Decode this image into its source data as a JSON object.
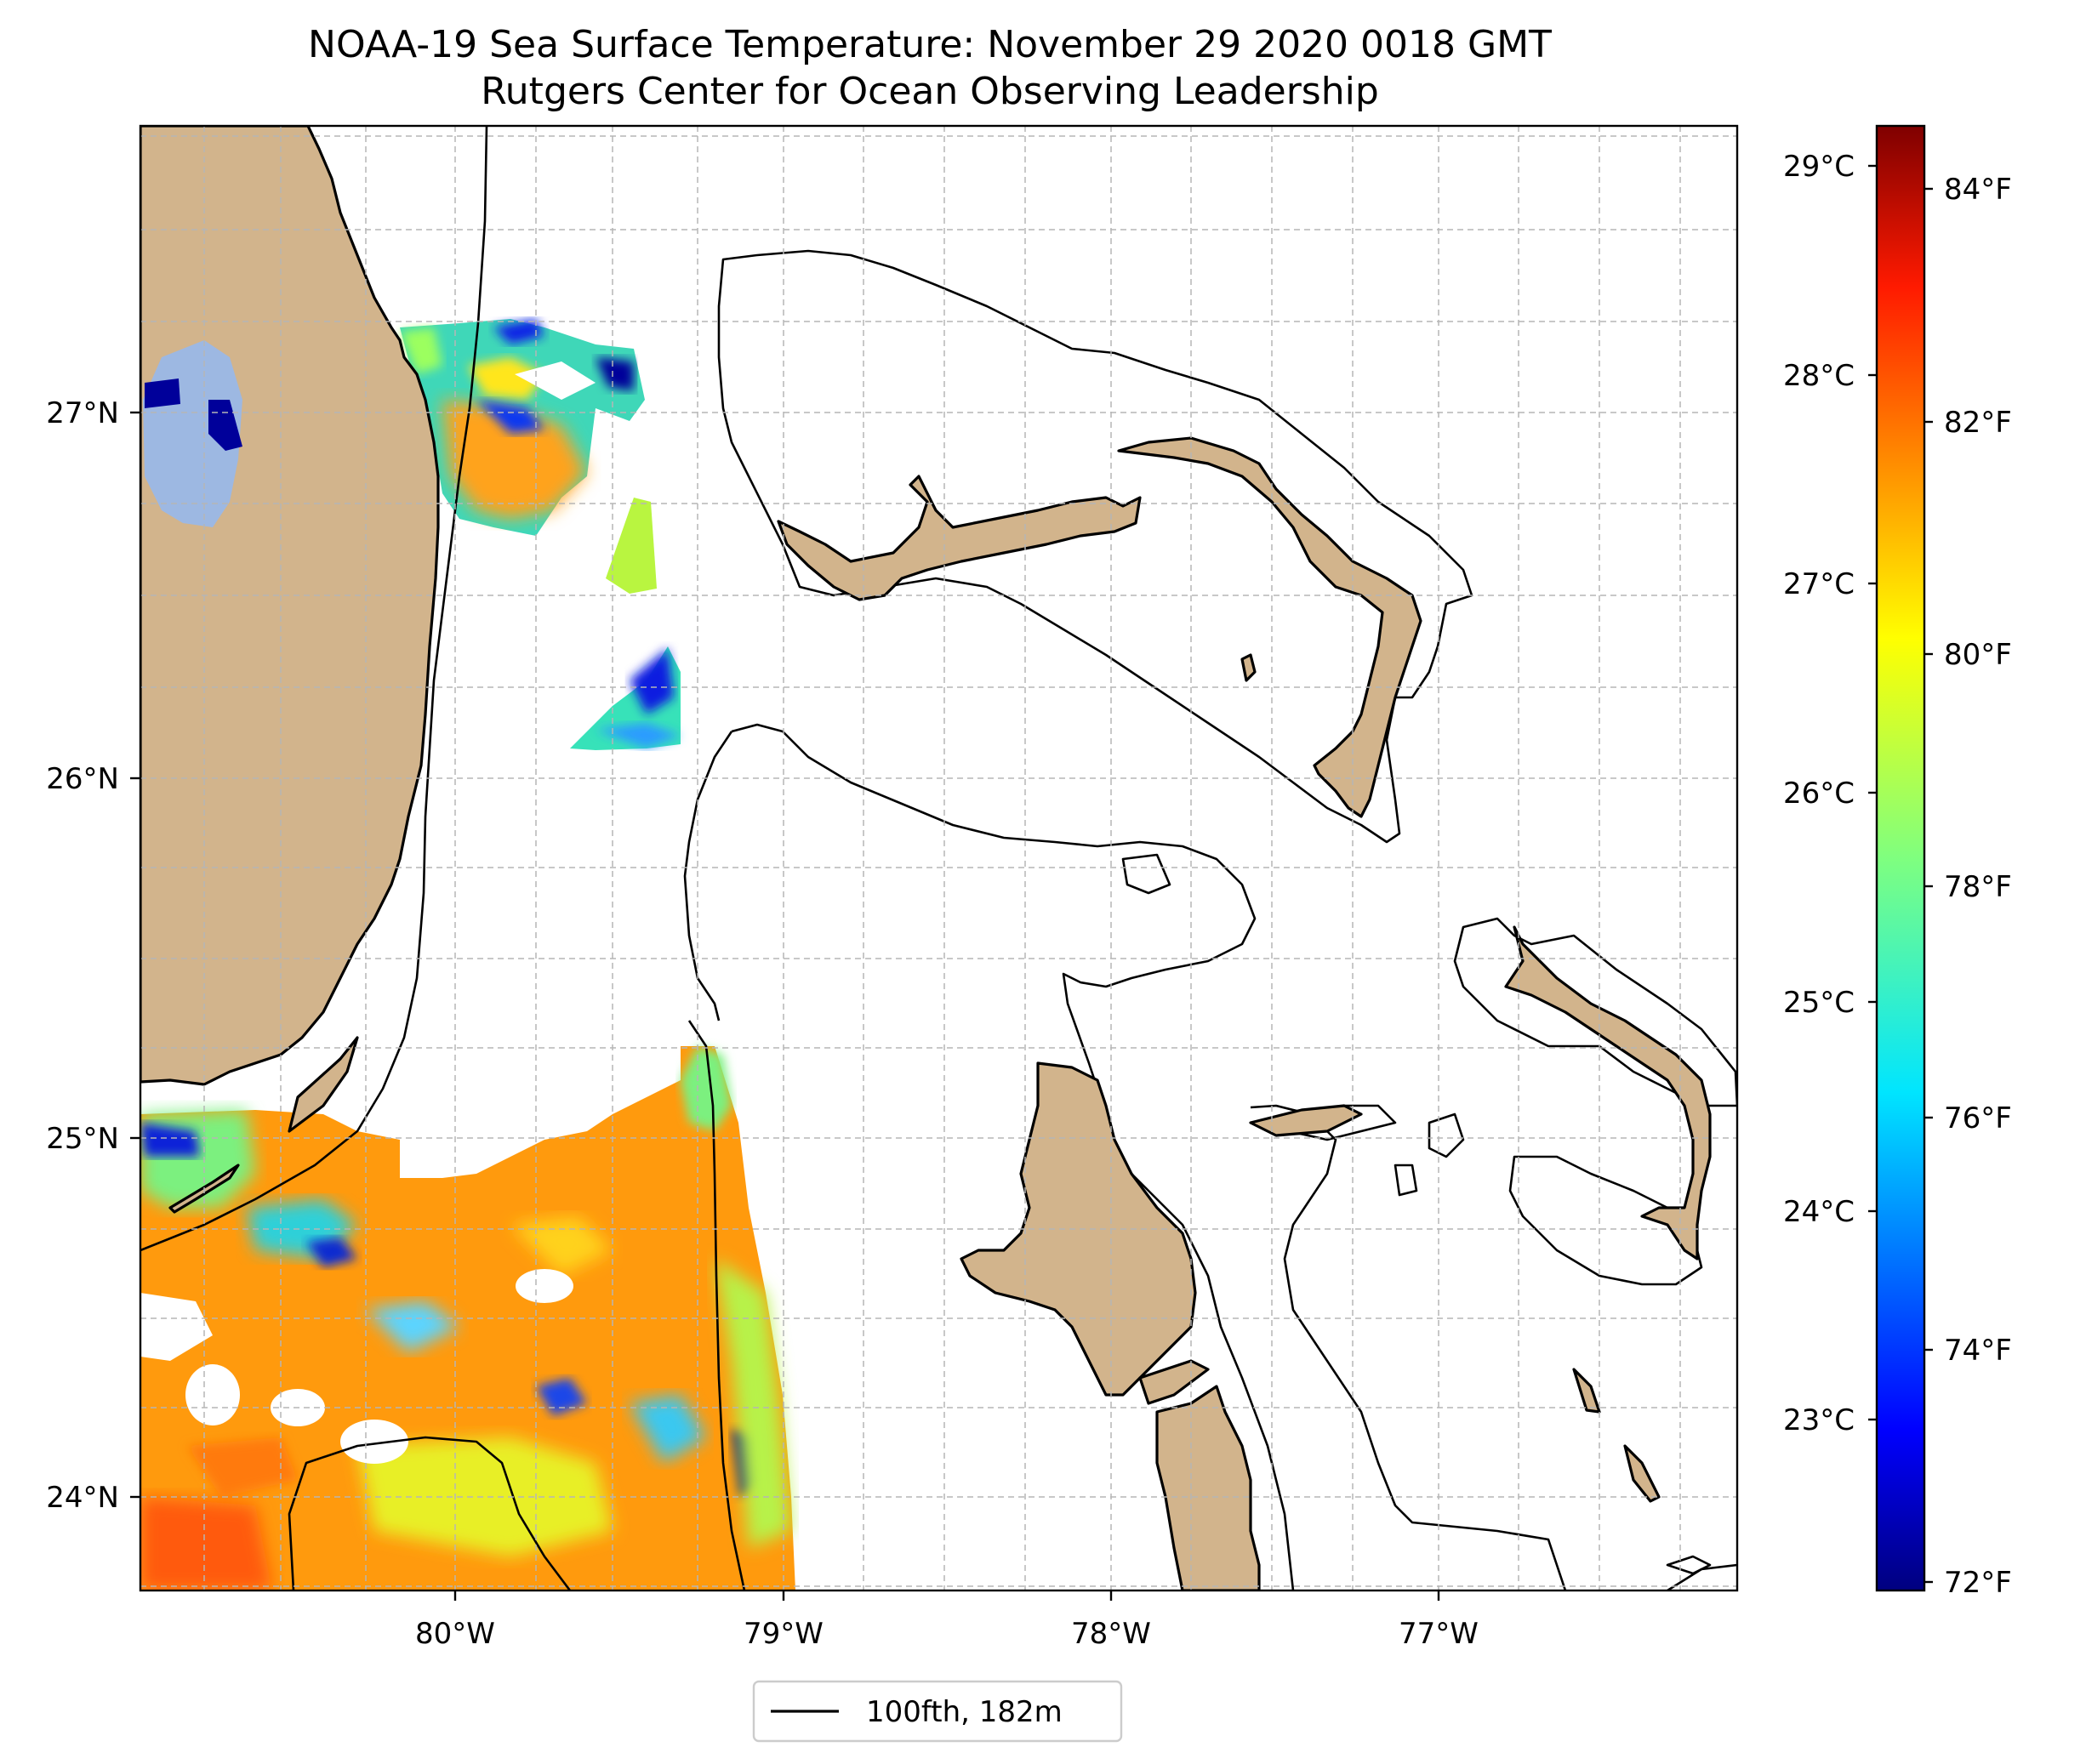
{
  "title": {
    "line1": "NOAA-19 Sea Surface Temperature: November 29 2020 0018 GMT",
    "line2": "Rutgers Center for Ocean Observing Leadership"
  },
  "map": {
    "x_ticks": [
      "80°W",
      "79°W",
      "78°W",
      "77°W"
    ],
    "y_ticks": [
      "27°N",
      "26°N",
      "25°N",
      "24°N"
    ],
    "land_color": "#d2b48c",
    "lake_color": "#9db8e2",
    "gridlines": "dashed"
  },
  "colorbar": {
    "colormap": "jet",
    "celsius_ticks": [
      "29°C",
      "28°C",
      "27°C",
      "26°C",
      "25°C",
      "24°C",
      "23°C"
    ],
    "fahrenheit_ticks": [
      "84°F",
      "82°F",
      "80°F",
      "78°F",
      "76°F",
      "74°F",
      "72°F"
    ]
  },
  "legend": {
    "entries": [
      {
        "label": "100fth, 182m",
        "style": "black solid line"
      }
    ]
  }
}
